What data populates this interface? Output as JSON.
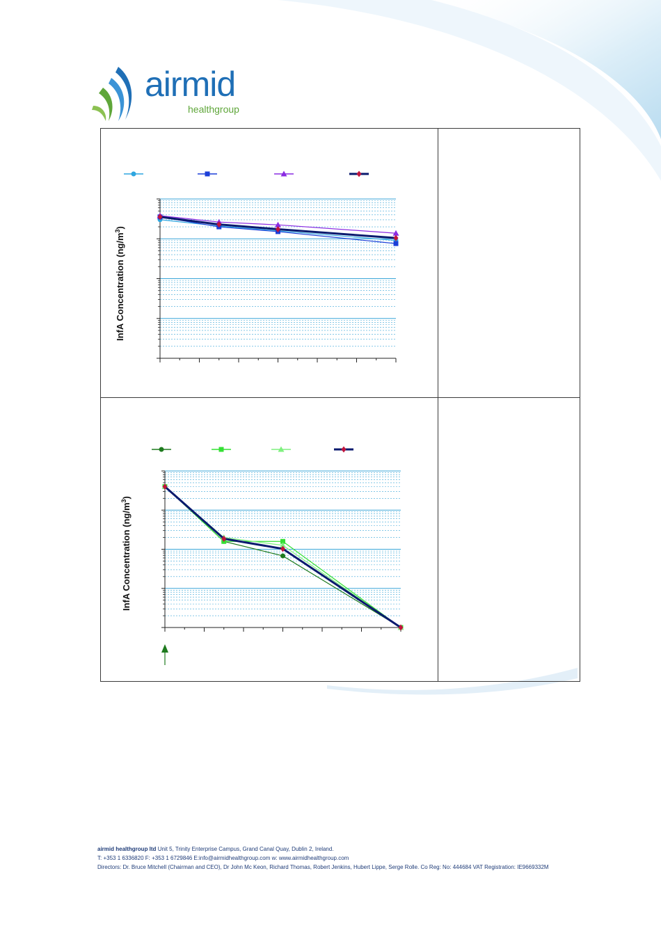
{
  "brand": {
    "name_word": "airmid",
    "name_sub": "healthgroup",
    "primary_color": "#1f6fb6",
    "accent_color": "#5fa63a"
  },
  "charts": [
    {
      "ylabel": "InfA Concentration (ng/m",
      "ylabel_sup": "3",
      "ylabel_tail": ")"
    },
    {
      "ylabel": "InfA Concentration (ng/m",
      "ylabel_sup": "3",
      "ylabel_tail": ")"
    }
  ],
  "chart_data": [
    {
      "type": "line",
      "yscale": "log",
      "y_decades": 4,
      "x": [
        0,
        1.5,
        3,
        6
      ],
      "xlim": [
        0,
        6
      ],
      "grid": true,
      "legend_placement": "top",
      "series": [
        {
          "color": "#2ea6e0",
          "marker": "circle",
          "values_log": [
            3.48,
            3.32,
            3.2,
            2.96
          ]
        },
        {
          "color": "#1c3fd8",
          "marker": "square",
          "values_log": [
            3.55,
            3.3,
            3.18,
            2.88
          ]
        },
        {
          "color": "#8a2be2",
          "marker": "triangle",
          "values_log": [
            3.58,
            3.42,
            3.35,
            3.14
          ]
        },
        {
          "color": "#0a1a6e",
          "marker": "diamond",
          "marker_color": "#c0143c",
          "values_log": [
            3.55,
            3.36,
            3.24,
            3.02
          ],
          "bold": true
        }
      ]
    },
    {
      "type": "line",
      "yscale": "log",
      "y_decades": 4,
      "x": [
        0,
        1.5,
        3,
        6
      ],
      "xlim": [
        0,
        6
      ],
      "grid": true,
      "legend_placement": "top",
      "series": [
        {
          "color": "#1e7a1e",
          "marker": "circle",
          "values_log": [
            3.6,
            2.2,
            1.83,
            0
          ]
        },
        {
          "color": "#34e034",
          "marker": "square",
          "values_log": [
            3.6,
            2.2,
            2.2,
            0
          ]
        },
        {
          "color": "#7ff07f",
          "marker": "triangle",
          "values_log": [
            3.6,
            2.3,
            2.1,
            0
          ]
        },
        {
          "color": "#0a1a6e",
          "marker": "diamond",
          "marker_color": "#c0143c",
          "values_log": [
            3.6,
            2.27,
            2.01,
            0
          ],
          "bold": true
        }
      ],
      "arrow_at_x": 0,
      "arrow_color": "#1e7a1e"
    }
  ],
  "footer": {
    "company": "airmid healthgroup ltd",
    "address": "Unit 5, Trinity Enterprise Campus, Grand Canal Quay, Dublin 2, Ireland.",
    "tel_label": "T:",
    "tel": "+353 1 6336820",
    "fax_label": "F:",
    "fax": "+353 1 6729846",
    "email_label": "E:",
    "email": "info@airmidhealthgroup.com",
    "web_label": "w:",
    "web": "www.airmidhealthgroup.com",
    "directors": "Directors: Dr. Bruce Mitchell (Chairman and CEO), Dr John Mc Keon, Richard Thomas, Robert Jenkins, Hubert Lippe, Serge Rolle. Co Reg: No: 444684 VAT Registration: IE9669332M"
  }
}
